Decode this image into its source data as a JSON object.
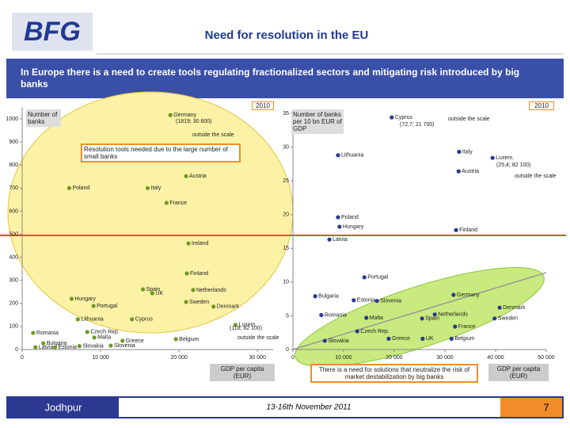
{
  "header": {
    "logo": "BFG",
    "title": "Need for resolution in the EU"
  },
  "banner": "In Europe there is a need to create tools regulating fractionalized sectors and mitigating risk introduced by big banks",
  "footer": {
    "location": "Jodhpur",
    "date": "13-16th November 2011",
    "page": "7"
  },
  "chart_data": [
    {
      "type": "scatter",
      "year": "2010",
      "y_label": "Number of banks",
      "x_label": "GDP per capita (EUR)",
      "callout": "Resolution tools needed due to the large number of small banks",
      "annotations": [
        "(1819; 30 600)",
        "outside the scale",
        "(118; 82 100)",
        "outside the scale"
      ],
      "color": "#6f9a1e",
      "labels": [
        "Germany",
        "Austria",
        "Poland",
        "Italy",
        "France",
        "Ireland",
        "Finland",
        "Spain",
        "Netherlands",
        "Hungary",
        "UK",
        "Portugal",
        "Sweden",
        "Denmark",
        "Cyprus",
        "Lithuania",
        "Czech Rep.",
        "Luxem.",
        "Romania",
        "Malta",
        "Greece",
        "Belgium",
        "Bulgaria",
        "Latvia",
        "Estonia",
        "Slovakia",
        "Slovenia"
      ],
      "x": [
        18900,
        20900,
        6000,
        16000,
        18400,
        21200,
        21000,
        15400,
        21800,
        6300,
        16600,
        9100,
        20900,
        24400,
        14000,
        7100,
        8300,
        27200,
        1400,
        9200,
        12800,
        19600,
        2700,
        1700,
        4200,
        7300,
        11300
      ],
      "y": [
        1017,
        752,
        700,
        700,
        636,
        460,
        330,
        261,
        258,
        220,
        244,
        189,
        206,
        186,
        131,
        131,
        76,
        107,
        72,
        52,
        38,
        45,
        27,
        10,
        10,
        15,
        17
      ],
      "xlim": [
        0,
        32000
      ],
      "ylim": [
        0,
        1050
      ],
      "xticks": [
        0,
        {
          "value": 10000,
          "label": "10 000"
        },
        {
          "value": 20000,
          "label": "20 000"
        },
        {
          "value": 30000,
          "label": "30 000"
        }
      ],
      "yticks": [
        0,
        100,
        200,
        300,
        400,
        500,
        600,
        700,
        800,
        900,
        1000
      ]
    },
    {
      "type": "scatter",
      "year": "2010",
      "y_label": "Number of banks per 10 bn EUR of GDP",
      "x_label": "GDP per capita (EUR)",
      "callout": "There is a need for solutions that neutralize the risk of market destabilization by big banks",
      "annotations": [
        "(72,7; 21 700)",
        "outside the scale",
        "(25,4; 82 100)",
        "outside the scale"
      ],
      "color": "#2b3990",
      "labels": [
        "Cyprus",
        "Italy",
        "Luxem.",
        "Lithuania",
        "Austria",
        "Poland",
        "Hungary",
        "Finland",
        "Latvia",
        "Portugal",
        "Germany",
        "Bulgaria",
        "Estonia",
        "Slovenia",
        "Denmark",
        "Netherlands",
        "Romania",
        "Malta",
        "Sweden",
        "Spain",
        "Czech Rep.",
        "France",
        "Belgium",
        "Greece",
        "UK",
        "Slovakia"
      ],
      "x": [
        19500,
        32800,
        39400,
        8900,
        32700,
        8900,
        9200,
        32200,
        7200,
        14100,
        31700,
        4400,
        12000,
        16600,
        40800,
        28000,
        5600,
        14500,
        39800,
        25500,
        12700,
        32000,
        31300,
        18900,
        25600,
        6300
      ],
      "y": [
        34.4,
        29.3,
        28.4,
        28.8,
        26.4,
        19.6,
        18.2,
        17.7,
        16.3,
        10.7,
        8.1,
        7.9,
        7.3,
        7.2,
        6.2,
        5.2,
        5.1,
        4.7,
        4.6,
        4.6,
        2.7,
        3.4,
        1.6,
        1.6,
        1.6,
        1.3
      ],
      "xlim": [
        0,
        50000
      ],
      "ylim": [
        0,
        35
      ],
      "xticks": [
        0,
        {
          "value": 10000,
          "label": "10 000"
        },
        {
          "value": 20000,
          "label": "20 000"
        },
        {
          "value": 30000,
          "label": "30 000"
        },
        {
          "value": 40000,
          "label": "40 000"
        },
        {
          "value": 50000,
          "label": "50 000"
        }
      ],
      "yticks": [
        0,
        5,
        10,
        15,
        20,
        25,
        30,
        35
      ]
    }
  ]
}
